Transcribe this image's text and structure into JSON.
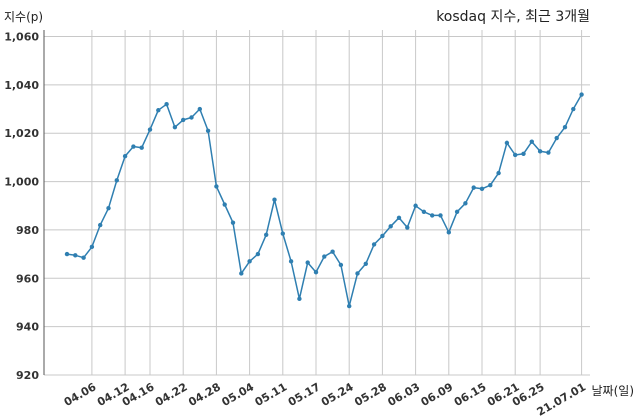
{
  "chart_data": {
    "type": "line",
    "title": "kosdaq 지수, 최근 3개월",
    "xlabel": "날짜(일)",
    "ylabel": "지수(p)",
    "ylim": [
      920,
      1065
    ],
    "yticks": [
      920,
      940,
      960,
      980,
      1000,
      1020,
      1040,
      1060
    ],
    "ytick_labels": [
      "920",
      "940",
      "960",
      "980",
      "1,000",
      "1,020",
      "1,040",
      "1,060"
    ],
    "xtick_labels": [
      "04.06",
      "04.12",
      "04.16",
      "04.22",
      "04.28",
      "05.04",
      "05.11",
      "05.17",
      "05.24",
      "05.28",
      "06.03",
      "06.09",
      "06.15",
      "06.21",
      "06.25",
      "21.07.01"
    ],
    "xtick_index": [
      3,
      7,
      10,
      14,
      18,
      22,
      26,
      30,
      34,
      38,
      42,
      46,
      50,
      54,
      57,
      62
    ],
    "grid": true,
    "series_color": "#2f7fb1",
    "series": [
      {
        "values": [
          970,
          969.5,
          968.5,
          973,
          982,
          989,
          1000.5,
          1010.5,
          1014.5,
          1014,
          1021.5,
          1029.5,
          1032,
          1022.5,
          1025.5,
          1026.5,
          1030,
          1021,
          998,
          990.5,
          983,
          962,
          967,
          970,
          978,
          992.5,
          978.5,
          967,
          951.5,
          966.5,
          962.5,
          969,
          971,
          965.5,
          948.5,
          962,
          966,
          974,
          977.5,
          981.5,
          985,
          981,
          990,
          987.5,
          986,
          986,
          979,
          987.5,
          991,
          997.5,
          997,
          998.5,
          1003.5,
          1016,
          1011,
          1011.5,
          1016.5,
          1012.5,
          1012,
          1018,
          1022.5,
          1030,
          1036
        ]
      }
    ]
  }
}
